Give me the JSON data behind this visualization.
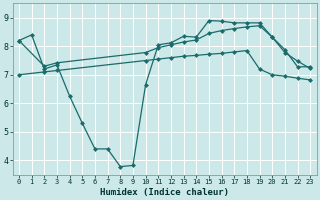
{
  "xlabel": "Humidex (Indice chaleur)",
  "xlim": [
    -0.5,
    23.5
  ],
  "ylim": [
    3.5,
    9.5
  ],
  "yticks": [
    4,
    5,
    6,
    7,
    8,
    9
  ],
  "xticks": [
    0,
    1,
    2,
    3,
    4,
    5,
    6,
    7,
    8,
    9,
    10,
    11,
    12,
    13,
    14,
    15,
    16,
    17,
    18,
    19,
    20,
    21,
    22,
    23
  ],
  "bg_color": "#cce8e8",
  "line_color": "#1a6b6b",
  "grid_color": "#ffffff",
  "line1_x": [
    0,
    1,
    2,
    3,
    4,
    5,
    6,
    7,
    8,
    9,
    10,
    11,
    12,
    13,
    14,
    15,
    16,
    17,
    18,
    19,
    20,
    21,
    22,
    23
  ],
  "line1_y": [
    8.2,
    8.4,
    7.2,
    7.35,
    6.25,
    5.3,
    4.4,
    4.4,
    3.78,
    3.82,
    6.65,
    8.05,
    8.12,
    8.35,
    8.32,
    8.9,
    8.88,
    8.82,
    8.82,
    8.82,
    8.32,
    7.88,
    7.28,
    7.28
  ],
  "line2_x": [
    0,
    2,
    3,
    10,
    11,
    12,
    13,
    14,
    15,
    16,
    17,
    18,
    19,
    20,
    21,
    22,
    23
  ],
  "line2_y": [
    8.2,
    7.3,
    7.42,
    7.78,
    7.95,
    8.05,
    8.15,
    8.22,
    8.45,
    8.55,
    8.62,
    8.68,
    8.72,
    8.32,
    7.78,
    7.48,
    7.22
  ],
  "line3_x": [
    0,
    2,
    3,
    10,
    11,
    12,
    13,
    14,
    15,
    16,
    17,
    18,
    19,
    20,
    21,
    22,
    23
  ],
  "line3_y": [
    7.0,
    7.1,
    7.15,
    7.5,
    7.55,
    7.6,
    7.65,
    7.68,
    7.72,
    7.75,
    7.8,
    7.85,
    7.2,
    7.0,
    6.95,
    6.88,
    6.82
  ]
}
